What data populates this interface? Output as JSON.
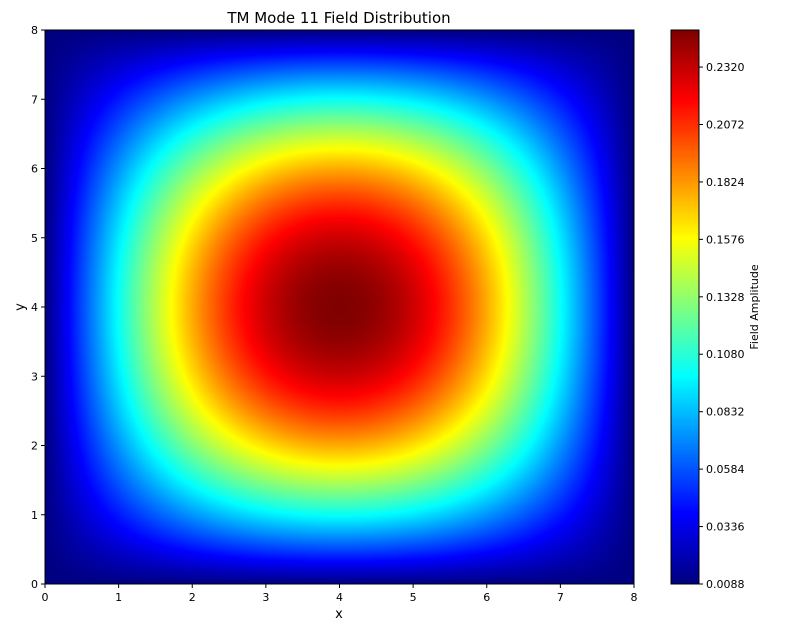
{
  "chart_data": {
    "type": "heatmap",
    "title": "TM Mode 11 Field Distribution",
    "xlabel": "x",
    "ylabel": "y",
    "xlim": [
      0,
      8
    ],
    "ylim": [
      0,
      8
    ],
    "xticks": [
      0,
      1,
      2,
      3,
      4,
      5,
      6,
      7,
      8
    ],
    "yticks": [
      0,
      1,
      2,
      3,
      4,
      5,
      6,
      7,
      8
    ],
    "colormap": "jet",
    "field": {
      "formula": "A * sin(pi*x/8) * sin(pi*y/8)",
      "peak_value": 0.248,
      "peak_location": [
        4,
        4
      ],
      "edge_value": 0.0088
    },
    "colorbar": {
      "label": "Field Amplitude",
      "range": [
        0.0088,
        0.248
      ],
      "ticks": [
        "0.0088",
        "0.0336",
        "0.0584",
        "0.0832",
        "0.1080",
        "0.1328",
        "0.1576",
        "0.1824",
        "0.2072",
        "0.2320"
      ]
    },
    "grid": false
  }
}
